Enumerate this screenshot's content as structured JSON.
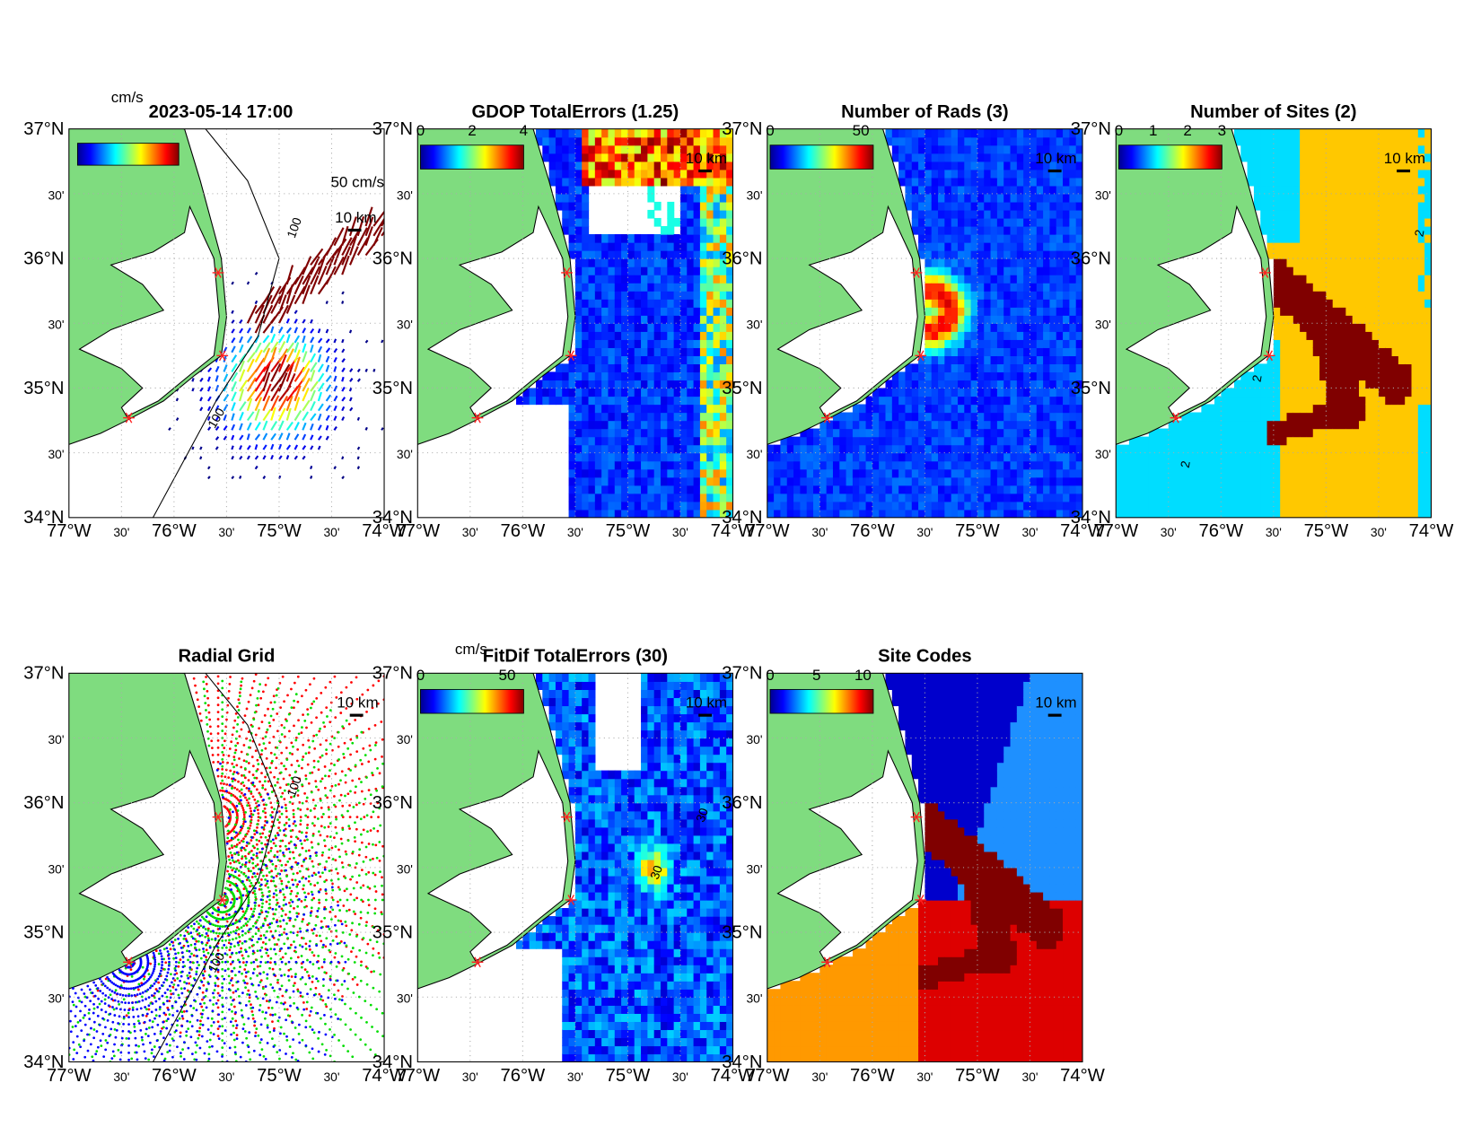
{
  "axes": {
    "lat_labels": [
      "37°N",
      "30'",
      "36°N",
      "30'",
      "35°N",
      "30'",
      "34°N"
    ],
    "lon_labels": [
      "77°W",
      "30'",
      "76°W",
      "30'",
      "75°W",
      "30'",
      "74°W"
    ]
  },
  "panels": [
    {
      "title": "2023-05-14 17:00",
      "colorbar_unit": "cm/s",
      "scale_labels": [
        "50 cm/s",
        "10 km"
      ],
      "contour_labels": [
        "100",
        "100"
      ]
    },
    {
      "title": "GDOP TotalErrors (1.25)",
      "colorbar_ticks": [
        "0",
        "2",
        "4"
      ],
      "scale_labels": [
        "10 km"
      ]
    },
    {
      "title": "Number of Rads (3)",
      "colorbar_ticks": [
        "0",
        "50"
      ],
      "scale_labels": [
        "10 km"
      ]
    },
    {
      "title": "Number of Sites (2)",
      "colorbar_ticks": [
        "0",
        "1",
        "2",
        "3"
      ],
      "scale_labels": [
        "10 km"
      ],
      "contour_labels": [
        "2",
        "2",
        "2"
      ]
    },
    {
      "title": "Radial Grid",
      "scale_labels": [
        "10 km"
      ],
      "contour_labels": [
        "100",
        "100"
      ]
    },
    {
      "title": "FitDif TotalErrors (30)",
      "colorbar_unit": "cm/s",
      "colorbar_ticks": [
        "0",
        "50"
      ],
      "scale_labels": [
        "10 km"
      ],
      "contour_labels": [
        "30",
        "30"
      ]
    },
    {
      "title": "Site Codes",
      "colorbar_ticks": [
        "0",
        "5",
        "10"
      ],
      "scale_labels": [
        "10 km"
      ]
    }
  ]
}
